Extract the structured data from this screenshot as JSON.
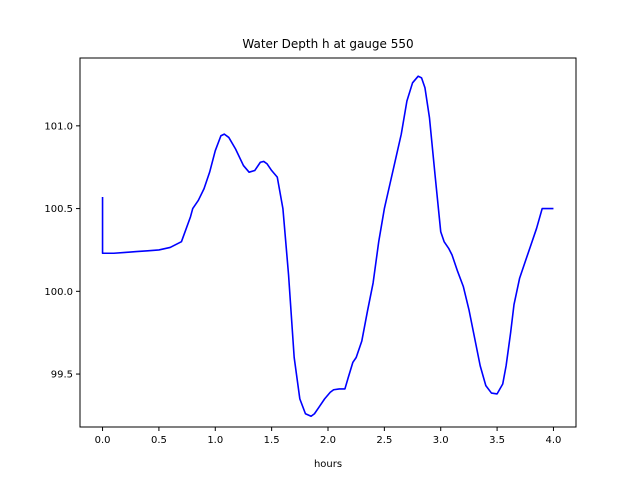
{
  "chart_data": {
    "type": "line",
    "title": "Water Depth h at gauge 550",
    "xlabel": "hours",
    "ylabel": "",
    "xlim": [
      -0.2,
      4.2
    ],
    "ylim": [
      99.18,
      101.41
    ],
    "xticks": [
      0.0,
      0.5,
      1.0,
      1.5,
      2.0,
      2.5,
      3.0,
      3.5,
      4.0
    ],
    "xtick_labels": [
      "0.0",
      "0.5",
      "1.0",
      "1.5",
      "2.0",
      "2.5",
      "3.0",
      "3.5",
      "4.0"
    ],
    "yticks": [
      99.5,
      100.0,
      100.5,
      101.0
    ],
    "ytick_labels": [
      "99.5",
      "100.0",
      "100.5",
      "101.0"
    ],
    "grid": false,
    "legend": "none",
    "series": [
      {
        "color": "#0000ff",
        "x": [
          0.0,
          0.0,
          0.1,
          0.2,
          0.3,
          0.4,
          0.5,
          0.6,
          0.7,
          0.78,
          0.8,
          0.85,
          0.9,
          0.95,
          1.0,
          1.05,
          1.08,
          1.12,
          1.18,
          1.25,
          1.3,
          1.35,
          1.4,
          1.43,
          1.46,
          1.5,
          1.55,
          1.6,
          1.65,
          1.7,
          1.75,
          1.8,
          1.85,
          1.88,
          1.92,
          1.97,
          2.02,
          2.05,
          2.1,
          2.15,
          2.18,
          2.22,
          2.25,
          2.3,
          2.35,
          2.4,
          2.45,
          2.5,
          2.55,
          2.6,
          2.65,
          2.7,
          2.75,
          2.8,
          2.83,
          2.86,
          2.9,
          2.95,
          3.0,
          3.03,
          3.07,
          3.1,
          3.15,
          3.2,
          3.25,
          3.3,
          3.35,
          3.4,
          3.45,
          3.5,
          3.55,
          3.58,
          3.62,
          3.65,
          3.7,
          3.75,
          3.8,
          3.85,
          3.9,
          3.95,
          4.0
        ],
        "y": [
          100.57,
          100.23,
          100.23,
          100.235,
          100.24,
          100.245,
          100.25,
          100.265,
          100.3,
          100.45,
          100.5,
          100.55,
          100.62,
          100.72,
          100.85,
          100.94,
          100.95,
          100.93,
          100.86,
          100.76,
          100.72,
          100.73,
          100.78,
          100.785,
          100.77,
          100.73,
          100.69,
          100.5,
          100.1,
          99.6,
          99.35,
          99.26,
          99.245,
          99.26,
          99.3,
          99.35,
          99.39,
          99.405,
          99.41,
          99.41,
          99.48,
          99.57,
          99.6,
          99.7,
          99.88,
          100.05,
          100.3,
          100.5,
          100.65,
          100.8,
          100.95,
          101.15,
          101.26,
          101.3,
          101.29,
          101.23,
          101.05,
          100.7,
          100.36,
          100.3,
          100.26,
          100.22,
          100.12,
          100.03,
          99.89,
          99.72,
          99.55,
          99.43,
          99.385,
          99.38,
          99.44,
          99.55,
          99.75,
          99.92,
          100.08,
          100.18,
          100.28,
          100.38,
          100.5,
          100.5,
          100.5
        ]
      }
    ]
  }
}
